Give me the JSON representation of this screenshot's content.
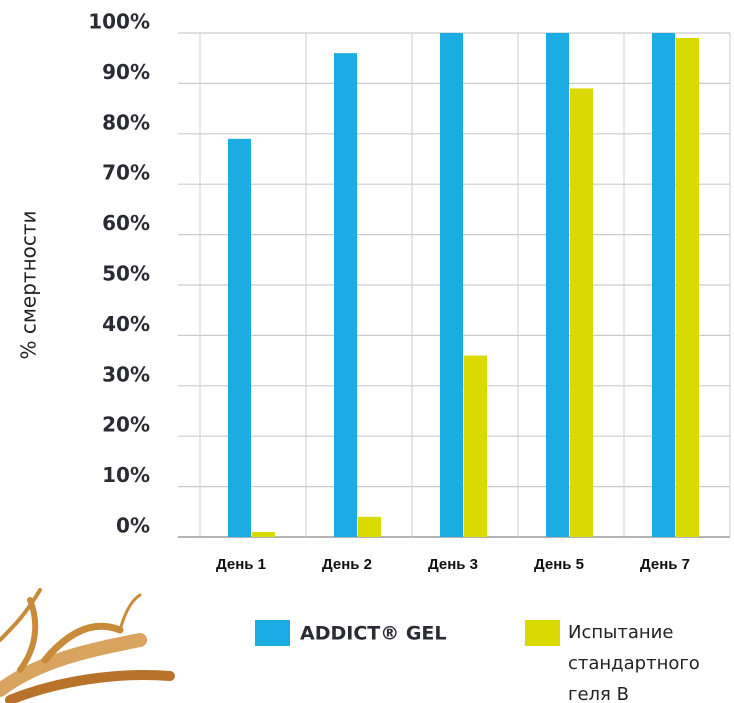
{
  "chart_data": {
    "type": "bar",
    "y_label": "% смертности",
    "categories": [
      "День 1",
      "День 2",
      "День 3",
      "День 5",
      "День 7"
    ],
    "series": [
      {
        "name": "ADDICT® GEL",
        "color": "#1aace3",
        "values": [
          79,
          96,
          100,
          100,
          100
        ]
      },
      {
        "name": "Испытание стандартного геля В",
        "color": "#d9db00",
        "values": [
          1,
          4,
          36,
          89,
          99
        ]
      }
    ],
    "ylim": [
      0,
      100
    ],
    "yticks": [
      {
        "value": 0,
        "label": "0%"
      },
      {
        "value": 10,
        "label": "10%"
      },
      {
        "value": 20,
        "label": "20%"
      },
      {
        "value": 30,
        "label": "30%"
      },
      {
        "value": 40,
        "label": "40%"
      },
      {
        "value": 50,
        "label": "50%"
      },
      {
        "value": 60,
        "label": "60%"
      },
      {
        "value": 70,
        "label": "70%"
      },
      {
        "value": 80,
        "label": "80%"
      },
      {
        "value": 90,
        "label": "90%"
      },
      {
        "value": 100,
        "label": "100%"
      }
    ],
    "grid": true
  }
}
